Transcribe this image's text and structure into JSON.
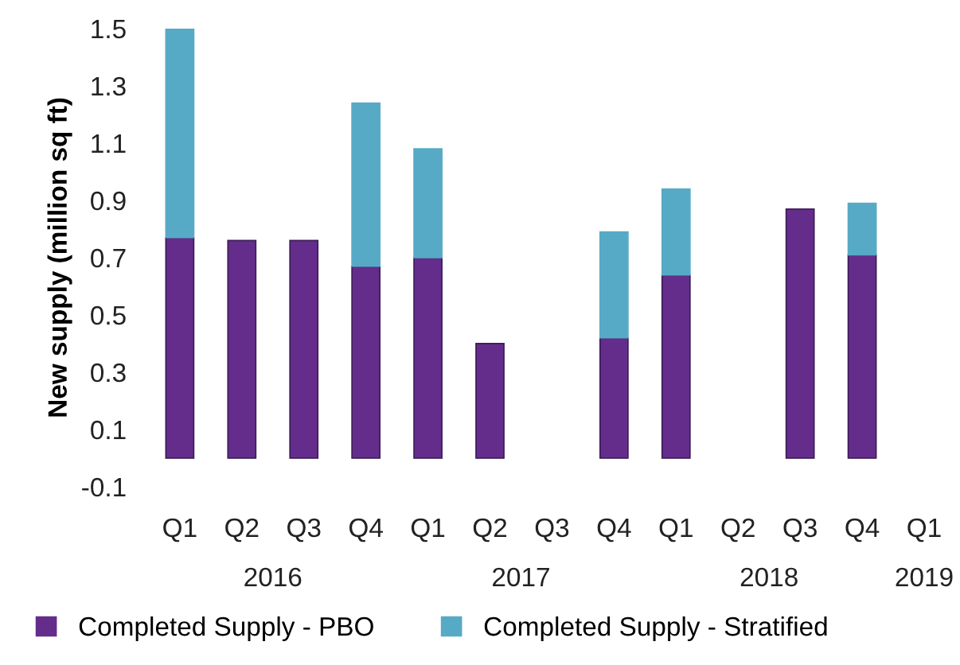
{
  "chart_data": {
    "type": "bar",
    "stacked": true,
    "ylabel": "New supply (million sq ft)",
    "categories": [
      "Q1",
      "Q2",
      "Q3",
      "Q4",
      "Q1",
      "Q2",
      "Q3",
      "Q4",
      "Q1",
      "Q2",
      "Q3",
      "Q4",
      "Q1"
    ],
    "series": [
      {
        "name": "Completed Supply - PBO",
        "color": "#642d8c",
        "values": [
          0.77,
          0.76,
          0.76,
          0.67,
          0.7,
          0.4,
          null,
          0.42,
          0.64,
          null,
          0.87,
          0.71,
          null
        ]
      },
      {
        "name": "Completed Supply - Stratified",
        "color": "#57aac6",
        "values": [
          0.73,
          null,
          null,
          0.57,
          0.38,
          null,
          null,
          0.37,
          0.3,
          null,
          null,
          0.18,
          null
        ]
      }
    ],
    "annotations": [
      "2016",
      "2017",
      "2018",
      "2019"
    ],
    "ylim": [
      -0.1,
      1.5
    ],
    "yticks": [
      -0.1,
      0.1,
      0.3,
      0.5,
      0.7,
      0.9,
      1.1,
      1.3,
      1.5
    ],
    "grid": false,
    "legend": "bottom"
  }
}
